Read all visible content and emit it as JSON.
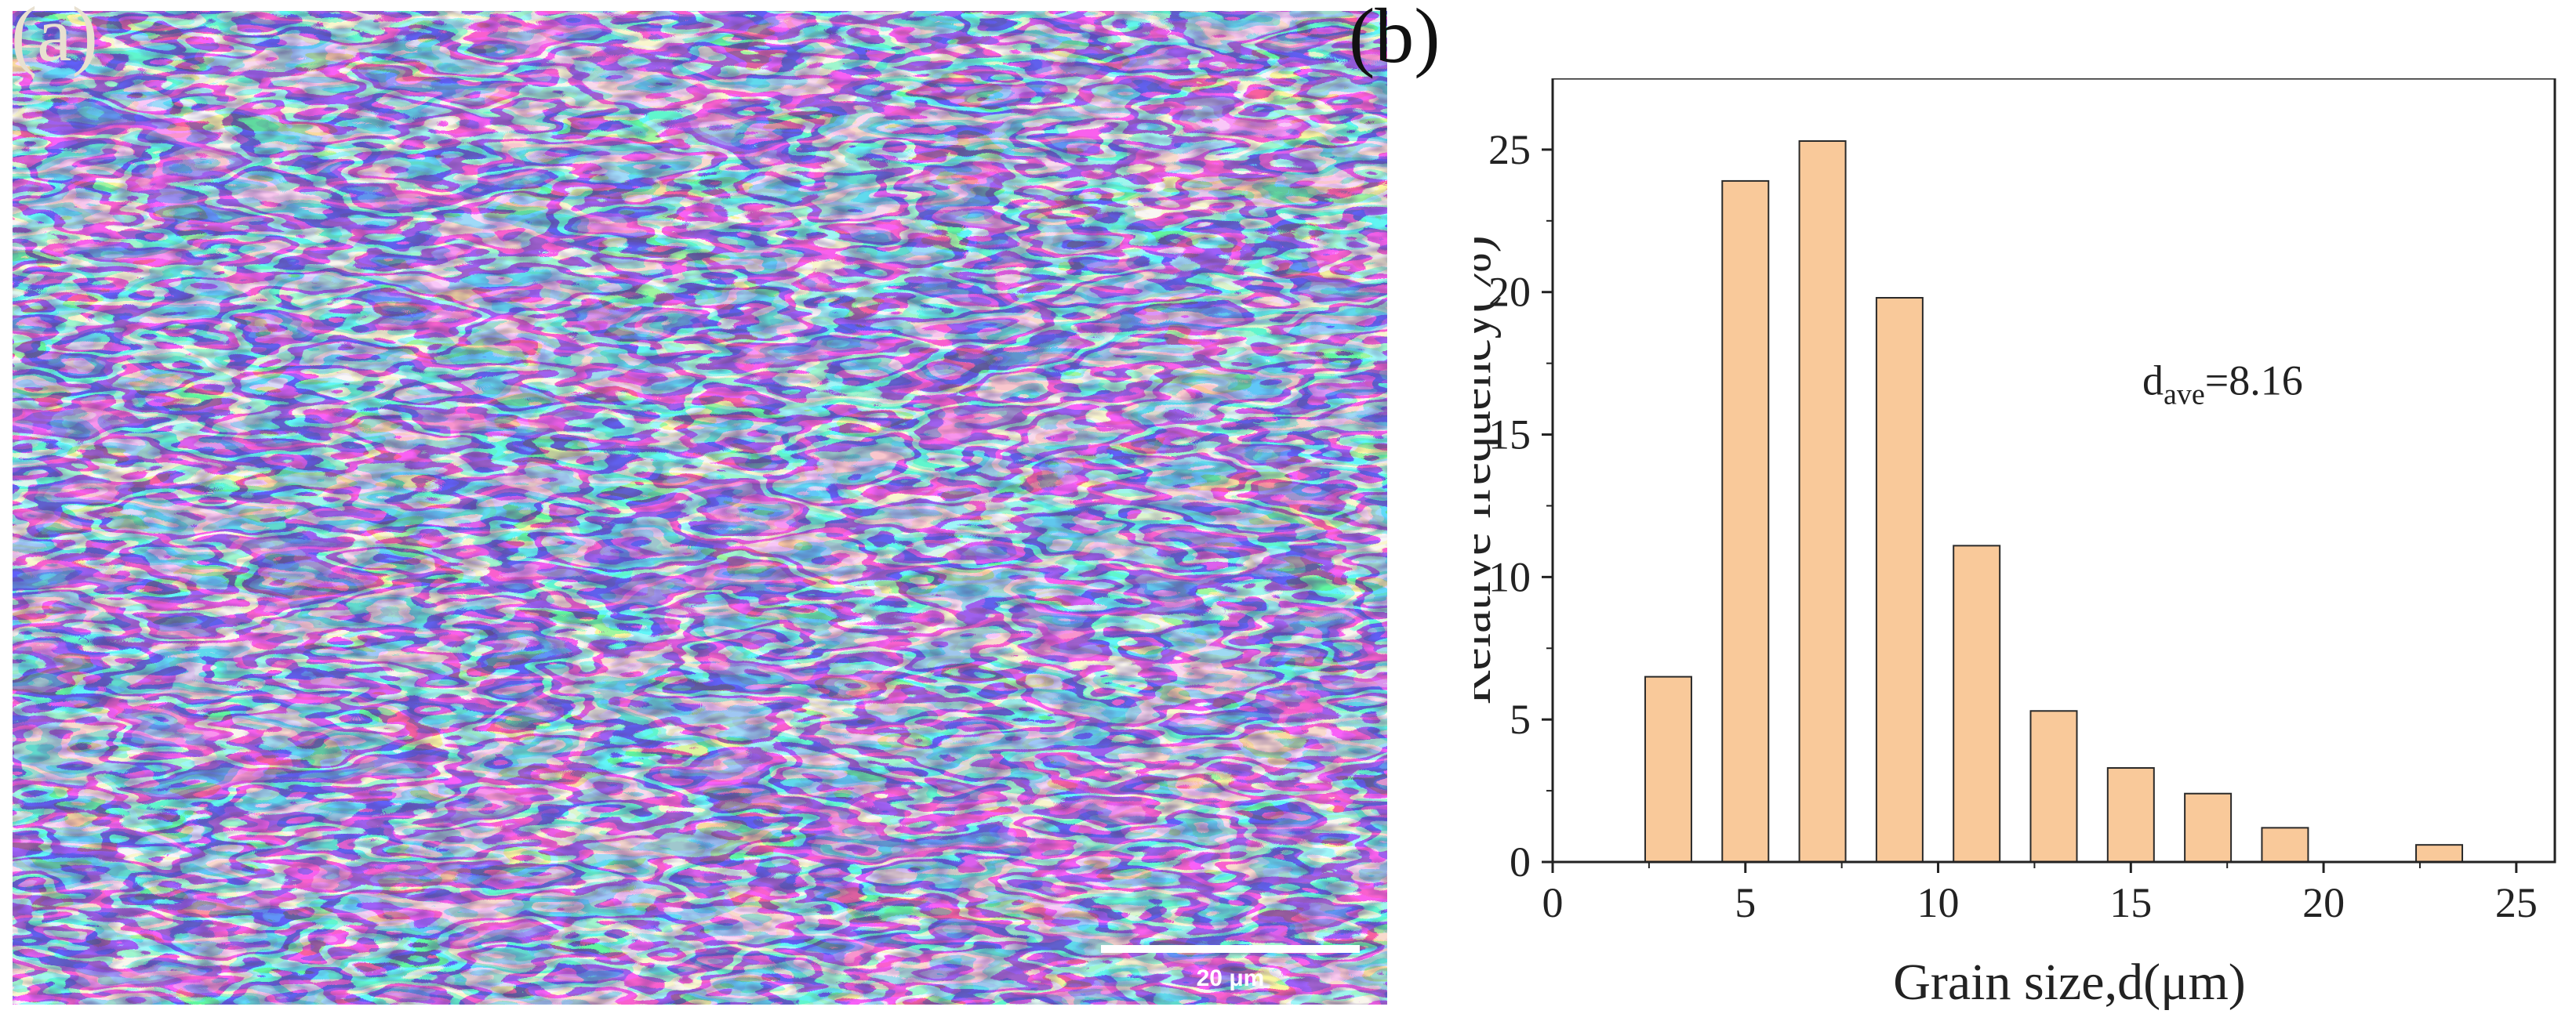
{
  "panels": {
    "a": {
      "label": "(a)",
      "scale_bar_text": "20 μm"
    },
    "b": {
      "label": "(b)"
    }
  },
  "colors": {
    "bar_fill": "#f9c99a",
    "bar_stroke": "#2a2a2a",
    "axis": "#222222",
    "grain_violet": "#5a1f9c",
    "grain_blue": "#1f4ee6",
    "grain_cyan": "#1fb4f0",
    "grain_tan": "#b8925a",
    "grain_white": "#f2ead8"
  },
  "chart_data": {
    "type": "bar",
    "title": "",
    "xlabel": "Grain size,d(μm)",
    "ylabel": "Relative frequency(%)",
    "xlim": [
      0,
      26
    ],
    "ylim": [
      0,
      27.5
    ],
    "xticks": [
      0,
      5,
      10,
      15,
      20,
      25
    ],
    "yticks": [
      0,
      5,
      10,
      15,
      20,
      25
    ],
    "bar_width": 1.2,
    "x": [
      3,
      5,
      7,
      9,
      11,
      13,
      15,
      17,
      19,
      23
    ],
    "values": [
      6.5,
      23.9,
      25.3,
      19.8,
      11.1,
      5.3,
      3.3,
      2.4,
      1.2,
      0.6
    ],
    "annotation": {
      "base": "d",
      "subscript": "ave",
      "value": "=8.16",
      "x": 15.3,
      "y": 16.4
    },
    "grid": false
  }
}
